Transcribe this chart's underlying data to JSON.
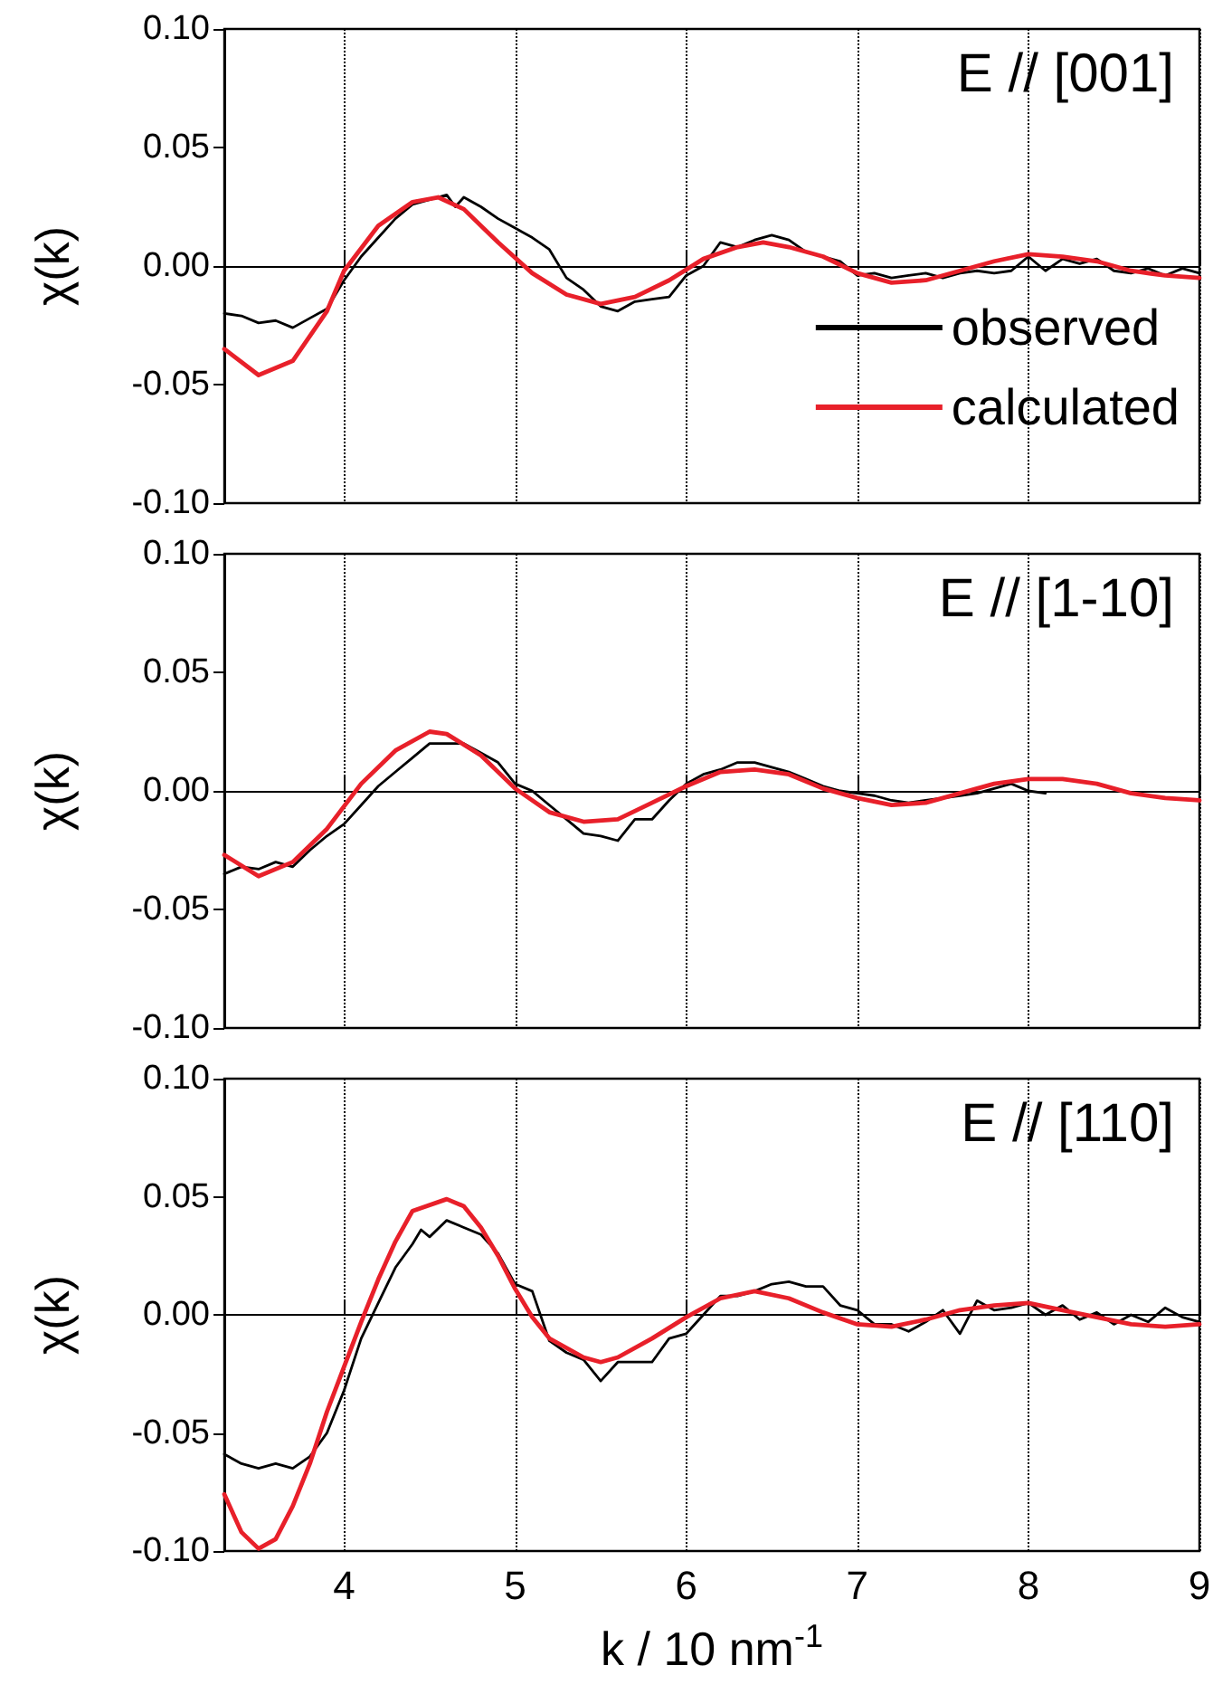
{
  "chart_data": [
    {
      "type": "line",
      "ylabel": "χ(k)",
      "annotations": [
        "E // [001]"
      ],
      "xlim": [
        3.3,
        9
      ],
      "xticks": [
        4,
        5,
        6,
        7,
        8,
        9
      ],
      "ylim": [
        -0.1,
        0.1
      ],
      "yticks": [
        {
          "value": -0.1,
          "label": "-0.10"
        },
        {
          "value": -0.05,
          "label": "-0.05"
        },
        {
          "value": 0,
          "label": "0.00"
        },
        {
          "value": 0.05,
          "label": "0.05"
        },
        {
          "value": 0.1,
          "label": "0.10"
        }
      ],
      "tick_labels": "y",
      "grid": "x",
      "legend": "bottom right",
      "marker": "none",
      "series": [
        {
          "name": "observed",
          "color": "#000000",
          "x": [
            3.3,
            3.4,
            3.5,
            3.6,
            3.7,
            3.8,
            3.9,
            4.0,
            4.1,
            4.2,
            4.3,
            4.4,
            4.5,
            4.6,
            4.65,
            4.7,
            4.8,
            4.9,
            5.0,
            5.1,
            5.2,
            5.3,
            5.4,
            5.5,
            5.6,
            5.7,
            5.8,
            5.9,
            6.0,
            6.1,
            6.2,
            6.3,
            6.4,
            6.5,
            6.6,
            6.7,
            6.8,
            6.9,
            7.0,
            7.1,
            7.2,
            7.3,
            7.4,
            7.5,
            7.6,
            7.7,
            7.8,
            7.9,
            8.0,
            8.1,
            8.2,
            8.3,
            8.4,
            8.5,
            8.6,
            8.7,
            8.8,
            8.9,
            9.0
          ],
          "values": [
            -0.02,
            -0.021,
            -0.024,
            -0.023,
            -0.026,
            -0.022,
            -0.018,
            -0.006,
            0.004,
            0.012,
            0.02,
            0.026,
            0.028,
            0.03,
            0.025,
            0.029,
            0.025,
            0.02,
            0.016,
            0.012,
            0.007,
            -0.005,
            -0.01,
            -0.017,
            -0.019,
            -0.015,
            -0.014,
            -0.013,
            -0.004,
            0.0,
            0.01,
            0.008,
            0.011,
            0.013,
            0.011,
            0.006,
            0.004,
            0.002,
            -0.004,
            -0.003,
            -0.005,
            -0.004,
            -0.003,
            -0.005,
            -0.003,
            -0.002,
            -0.003,
            -0.002,
            0.004,
            -0.002,
            0.003,
            0.001,
            0.003,
            -0.002,
            -0.003,
            -0.001,
            -0.004,
            -0.001,
            -0.003
          ]
        },
        {
          "name": "calculated",
          "color": "#e8202a",
          "x": [
            3.3,
            3.5,
            3.7,
            3.9,
            4.0,
            4.2,
            4.4,
            4.55,
            4.7,
            4.9,
            5.1,
            5.3,
            5.5,
            5.7,
            5.9,
            6.1,
            6.3,
            6.45,
            6.6,
            6.8,
            7.0,
            7.2,
            7.4,
            7.6,
            7.8,
            8.0,
            8.2,
            8.4,
            8.6,
            8.8,
            9.0
          ],
          "values": [
            -0.035,
            -0.046,
            -0.04,
            -0.019,
            -0.002,
            0.017,
            0.027,
            0.029,
            0.024,
            0.01,
            -0.003,
            -0.012,
            -0.016,
            -0.013,
            -0.006,
            0.003,
            0.008,
            0.01,
            0.008,
            0.004,
            -0.003,
            -0.007,
            -0.006,
            -0.002,
            0.002,
            0.005,
            0.004,
            0.002,
            -0.002,
            -0.004,
            -0.005
          ]
        }
      ]
    },
    {
      "type": "line",
      "ylabel": "χ(k)",
      "annotations": [
        "E // [1-10]"
      ],
      "xlim": [
        3.3,
        9
      ],
      "xticks": [
        4,
        5,
        6,
        7,
        8,
        9
      ],
      "ylim": [
        -0.1,
        0.1
      ],
      "yticks": [
        {
          "value": -0.1,
          "label": "-0.10"
        },
        {
          "value": -0.05,
          "label": "-0.05"
        },
        {
          "value": 0,
          "label": "0.00"
        },
        {
          "value": 0.05,
          "label": "0.05"
        },
        {
          "value": 0.1,
          "label": "0.10"
        }
      ],
      "tick_labels": "y",
      "grid": "x",
      "marker": "none",
      "series": [
        {
          "color": "#000000",
          "x": [
            3.3,
            3.4,
            3.5,
            3.6,
            3.7,
            3.8,
            3.9,
            4.0,
            4.1,
            4.2,
            4.3,
            4.4,
            4.5,
            4.6,
            4.7,
            4.8,
            4.9,
            5.0,
            5.1,
            5.2,
            5.3,
            5.4,
            5.5,
            5.6,
            5.7,
            5.8,
            5.9,
            6.0,
            6.1,
            6.2,
            6.3,
            6.4,
            6.5,
            6.6,
            6.7,
            6.8,
            6.9,
            7.0,
            7.1,
            7.2,
            7.3,
            7.4,
            7.5,
            7.6,
            7.7,
            7.8,
            7.9,
            8.0,
            8.1
          ],
          "values": [
            -0.035,
            -0.032,
            -0.033,
            -0.03,
            -0.032,
            -0.025,
            -0.019,
            -0.014,
            -0.006,
            0.002,
            0.008,
            0.014,
            0.02,
            0.02,
            0.02,
            0.016,
            0.012,
            0.003,
            0.0,
            -0.006,
            -0.012,
            -0.018,
            -0.019,
            -0.021,
            -0.012,
            -0.012,
            -0.004,
            0.003,
            0.007,
            0.009,
            0.012,
            0.012,
            0.01,
            0.008,
            0.005,
            0.002,
            0.0,
            -0.001,
            -0.002,
            -0.004,
            -0.005,
            -0.004,
            -0.003,
            -0.002,
            -0.001,
            0.001,
            0.003,
            0.0,
            -0.001
          ]
        },
        {
          "color": "#e8202a",
          "x": [
            3.3,
            3.5,
            3.7,
            3.9,
            4.1,
            4.3,
            4.5,
            4.6,
            4.8,
            5.0,
            5.2,
            5.4,
            5.6,
            5.8,
            6.0,
            6.2,
            6.4,
            6.6,
            6.8,
            7.0,
            7.2,
            7.4,
            7.6,
            7.8,
            8.0,
            8.2,
            8.4,
            8.6,
            8.8,
            9.0
          ],
          "values": [
            -0.027,
            -0.036,
            -0.03,
            -0.016,
            0.003,
            0.017,
            0.025,
            0.024,
            0.015,
            0.001,
            -0.009,
            -0.013,
            -0.012,
            -0.005,
            0.002,
            0.008,
            0.009,
            0.007,
            0.001,
            -0.003,
            -0.006,
            -0.005,
            -0.001,
            0.003,
            0.005,
            0.005,
            0.003,
            -0.001,
            -0.003,
            -0.004
          ]
        }
      ]
    },
    {
      "type": "line",
      "ylabel": "χ(k)",
      "xlabel": "k / 10 nm$^{-1}$",
      "annotations": [
        "E // [110]"
      ],
      "xlim": [
        3.3,
        9
      ],
      "xticks": [
        4,
        5,
        6,
        7,
        8,
        9
      ],
      "ylim": [
        -0.1,
        0.1
      ],
      "yticks": [
        {
          "value": -0.1,
          "label": "-0.10"
        },
        {
          "value": -0.05,
          "label": "-0.05"
        },
        {
          "value": 0,
          "label": "0.00"
        },
        {
          "value": 0.05,
          "label": "0.05"
        },
        {
          "value": 0.1,
          "label": "0.10"
        }
      ],
      "grid": "x",
      "marker": "none",
      "series": [
        {
          "color": "#000000",
          "x": [
            3.3,
            3.4,
            3.5,
            3.6,
            3.7,
            3.8,
            3.9,
            4.0,
            4.1,
            4.2,
            4.3,
            4.4,
            4.45,
            4.5,
            4.6,
            4.7,
            4.8,
            4.9,
            5.0,
            5.1,
            5.2,
            5.3,
            5.4,
            5.5,
            5.6,
            5.7,
            5.8,
            5.9,
            6.0,
            6.1,
            6.2,
            6.3,
            6.4,
            6.5,
            6.6,
            6.7,
            6.8,
            6.9,
            7.0,
            7.1,
            7.2,
            7.3,
            7.4,
            7.5,
            7.6,
            7.7,
            7.8,
            7.9,
            8.0,
            8.1,
            8.2,
            8.3,
            8.4,
            8.5,
            8.6,
            8.7,
            8.8,
            8.9,
            9.0
          ],
          "values": [
            -0.059,
            -0.063,
            -0.065,
            -0.063,
            -0.065,
            -0.06,
            -0.05,
            -0.032,
            -0.01,
            0.005,
            0.02,
            0.03,
            0.036,
            0.033,
            0.04,
            0.037,
            0.034,
            0.026,
            0.013,
            0.01,
            -0.011,
            -0.016,
            -0.019,
            -0.028,
            -0.02,
            -0.02,
            -0.02,
            -0.01,
            -0.008,
            0.0,
            0.008,
            0.008,
            0.01,
            0.013,
            0.014,
            0.012,
            0.012,
            0.004,
            0.002,
            -0.004,
            -0.004,
            -0.007,
            -0.003,
            0.002,
            -0.008,
            0.006,
            0.002,
            0.003,
            0.005,
            0.0,
            0.004,
            -0.002,
            0.001,
            -0.004,
            0.0,
            -0.003,
            0.003,
            -0.001,
            -0.003
          ]
        },
        {
          "color": "#e8202a",
          "x": [
            3.3,
            3.4,
            3.5,
            3.6,
            3.7,
            3.8,
            3.9,
            4.0,
            4.1,
            4.2,
            4.3,
            4.4,
            4.6,
            4.7,
            4.8,
            4.9,
            5.0,
            5.1,
            5.2,
            5.4,
            5.5,
            5.6,
            5.8,
            6.0,
            6.2,
            6.4,
            6.6,
            6.8,
            7.0,
            7.2,
            7.4,
            7.6,
            7.8,
            8.0,
            8.2,
            8.4,
            8.6,
            8.8,
            9.0
          ],
          "values": [
            -0.076,
            -0.092,
            -0.099,
            -0.095,
            -0.081,
            -0.063,
            -0.041,
            -0.022,
            -0.003,
            0.015,
            0.031,
            0.044,
            0.049,
            0.046,
            0.037,
            0.025,
            0.011,
            -0.001,
            -0.01,
            -0.018,
            -0.02,
            -0.018,
            -0.01,
            -0.001,
            0.007,
            0.01,
            0.007,
            0.001,
            -0.004,
            -0.005,
            -0.002,
            0.002,
            0.004,
            0.005,
            0.002,
            -0.001,
            -0.004,
            -0.005,
            -0.004
          ]
        }
      ]
    }
  ]
}
